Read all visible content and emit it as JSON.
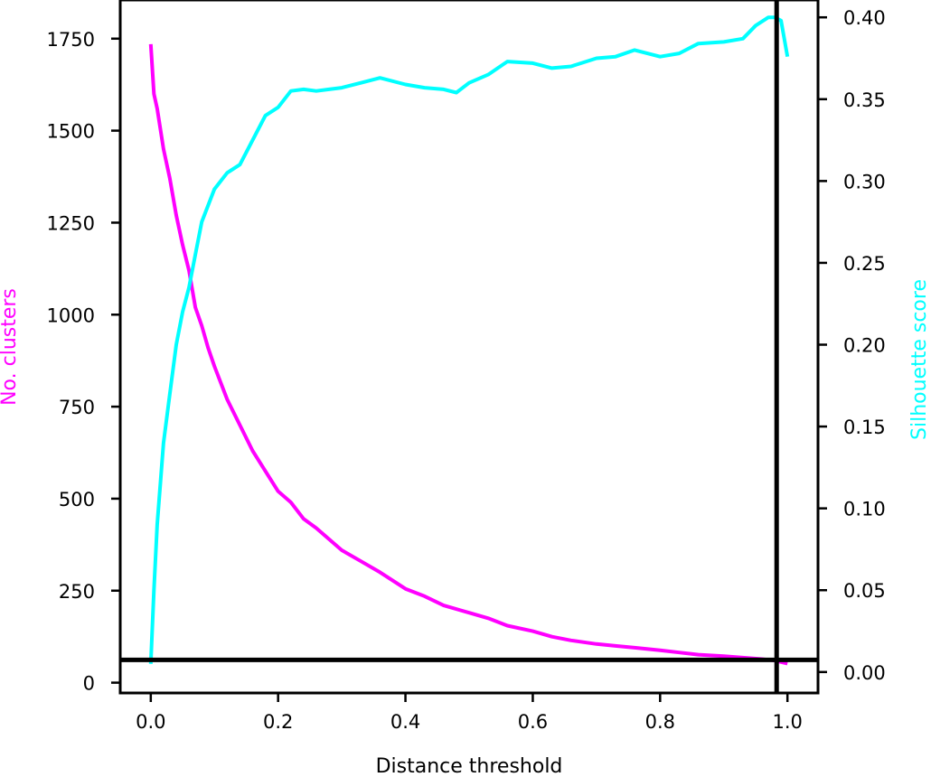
{
  "chart_data": {
    "type": "line",
    "xlabel": "Distance threshold",
    "ylabel_left": "No. clusters",
    "ylabel_right": "Silhouette score",
    "xlim": [
      -0.048,
      1.048
    ],
    "ylim_left": [
      -28,
      1855
    ],
    "ylim_right": [
      -0.0128,
      0.4106
    ],
    "x_ticks": [
      "0.0",
      "0.2",
      "0.4",
      "0.6",
      "0.8",
      "1.0"
    ],
    "y_left_ticks": [
      "0",
      "250",
      "500",
      "750",
      "1000",
      "1250",
      "1500",
      "1750"
    ],
    "y_right_ticks": [
      "0.00",
      "0.05",
      "0.10",
      "0.15",
      "0.20",
      "0.25",
      "0.30",
      "0.35",
      "0.40"
    ],
    "grid": false,
    "colors": {
      "clusters": "#ff00ff",
      "silhouette": "#00ffff",
      "reference_lines": "#000000"
    },
    "reference_lines": {
      "vertical_x": 0.983,
      "horizontal_clusters": 62
    },
    "series": [
      {
        "axis": "left",
        "color": "#ff00ff",
        "x": [
          0.0,
          0.005,
          0.01,
          0.02,
          0.03,
          0.04,
          0.05,
          0.06,
          0.07,
          0.08,
          0.09,
          0.1,
          0.12,
          0.14,
          0.16,
          0.18,
          0.2,
          0.22,
          0.24,
          0.26,
          0.28,
          0.3,
          0.33,
          0.36,
          0.4,
          0.43,
          0.46,
          0.5,
          0.53,
          0.56,
          0.6,
          0.63,
          0.66,
          0.7,
          0.73,
          0.76,
          0.8,
          0.83,
          0.86,
          0.9,
          0.93,
          0.96,
          0.98,
          1.0
        ],
        "values": [
          1735,
          1600,
          1560,
          1450,
          1370,
          1270,
          1190,
          1120,
          1020,
          970,
          910,
          860,
          770,
          700,
          630,
          575,
          520,
          490,
          445,
          420,
          390,
          360,
          330,
          300,
          255,
          235,
          210,
          190,
          175,
          155,
          140,
          125,
          115,
          105,
          100,
          95,
          88,
          82,
          76,
          72,
          68,
          64,
          60,
          52
        ]
      },
      {
        "axis": "right",
        "color": "#00ffff",
        "x": [
          0.0,
          0.005,
          0.01,
          0.02,
          0.03,
          0.04,
          0.05,
          0.06,
          0.07,
          0.08,
          0.09,
          0.1,
          0.12,
          0.14,
          0.16,
          0.18,
          0.2,
          0.22,
          0.24,
          0.26,
          0.28,
          0.3,
          0.33,
          0.36,
          0.4,
          0.43,
          0.46,
          0.48,
          0.5,
          0.53,
          0.56,
          0.6,
          0.63,
          0.66,
          0.7,
          0.73,
          0.76,
          0.8,
          0.83,
          0.86,
          0.9,
          0.93,
          0.95,
          0.97,
          0.98,
          0.99,
          1.0
        ],
        "values": [
          0.005,
          0.05,
          0.09,
          0.14,
          0.17,
          0.2,
          0.22,
          0.235,
          0.255,
          0.275,
          0.285,
          0.295,
          0.305,
          0.31,
          0.325,
          0.34,
          0.345,
          0.355,
          0.356,
          0.355,
          0.356,
          0.357,
          0.36,
          0.363,
          0.359,
          0.357,
          0.356,
          0.354,
          0.36,
          0.365,
          0.373,
          0.372,
          0.369,
          0.37,
          0.375,
          0.376,
          0.38,
          0.376,
          0.378,
          0.384,
          0.385,
          0.387,
          0.395,
          0.4,
          0.4,
          0.398,
          0.376
        ]
      }
    ]
  }
}
